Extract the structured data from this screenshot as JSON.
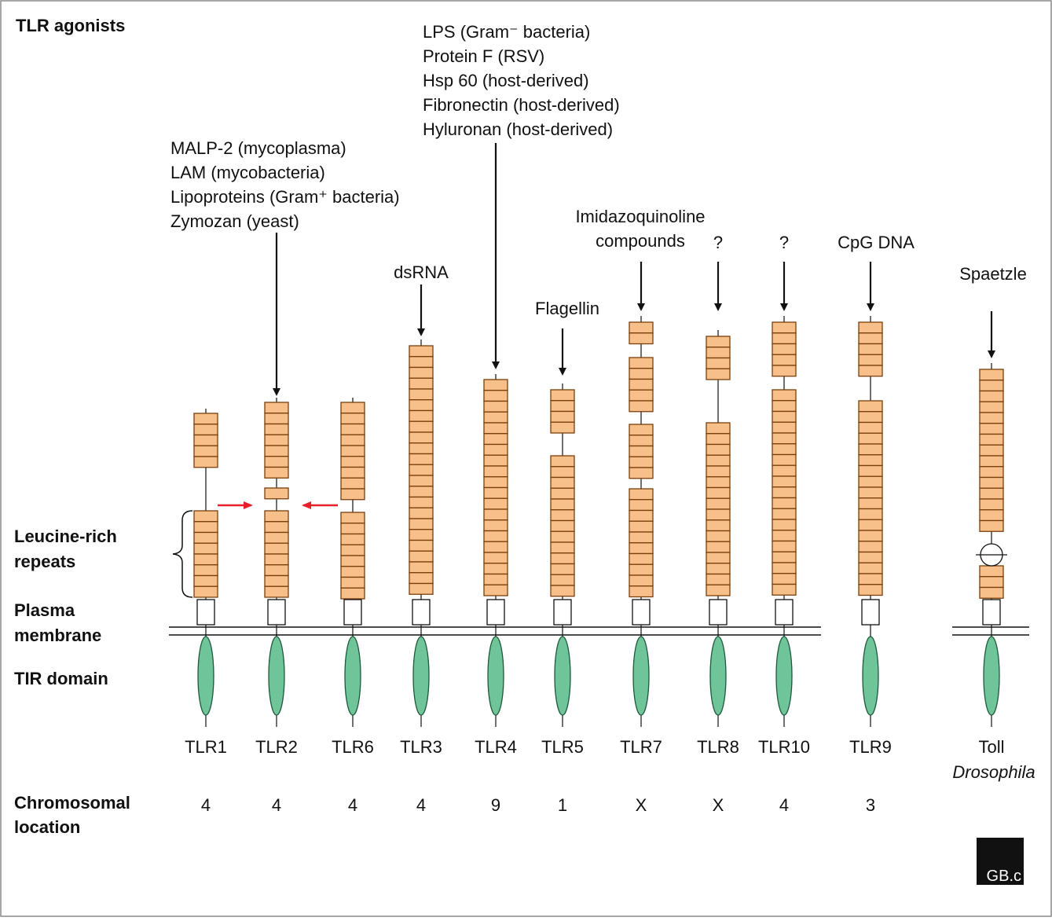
{
  "title": "TLR agonists",
  "row_labels": {
    "leucine_rich_repeats": [
      "Leucine-rich",
      "repeats"
    ],
    "plasma_membrane": [
      "Plasma",
      "membrane"
    ],
    "tir_domain": [
      "TIR domain"
    ],
    "chromosomal_location": [
      "Chromosomal",
      "location"
    ]
  },
  "receptors": [
    {
      "name": "TLR1",
      "chromosome": "4"
    },
    {
      "name": "TLR2",
      "chromosome": "4",
      "agonists": [
        "MALP-2 (mycoplasma)",
        "LAM (mycobacteria)",
        "Lipoproteins (Gram⁺ bacteria)",
        "Zymozan (yeast)"
      ]
    },
    {
      "name": "TLR6",
      "chromosome": "4"
    },
    {
      "name": "TLR3",
      "chromosome": "4",
      "agonists": [
        "dsRNA"
      ]
    },
    {
      "name": "TLR4",
      "chromosome": "9",
      "agonists": [
        "LPS (Gram⁻ bacteria)",
        "Protein F (RSV)",
        "Hsp 60 (host-derived)",
        "Fibronectin (host-derived)",
        "Hyluronan (host-derived)"
      ]
    },
    {
      "name": "TLR5",
      "chromosome": "1",
      "agonists": [
        "Flagellin"
      ]
    },
    {
      "name": "TLR7",
      "chromosome": "X",
      "agonists": [
        "Imidazoquinoline",
        "compounds"
      ]
    },
    {
      "name": "TLR8",
      "chromosome": "X",
      "agonists": [
        "?"
      ]
    },
    {
      "name": "TLR10",
      "chromosome": "4",
      "agonists": [
        "?"
      ]
    },
    {
      "name": "TLR9",
      "chromosome": "3",
      "agonists": [
        "CpG DNA"
      ]
    },
    {
      "name": "Toll",
      "species": "Drosophila",
      "agonists": [
        "Spaetzle"
      ]
    }
  ],
  "logo": "GB.c"
}
